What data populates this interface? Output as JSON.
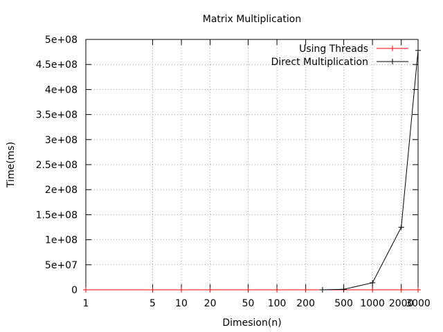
{
  "chart_data": {
    "type": "line",
    "title": "Matrix Multiplication",
    "xlabel": "Dimesion(n)",
    "ylabel": "Time(ms)",
    "xscale": "log",
    "xlim": [
      1,
      3000
    ],
    "ylim": [
      0,
      500000000
    ],
    "grid": true,
    "legend_position": "top-right",
    "xticks": [
      {
        "value": 1,
        "label": "1"
      },
      {
        "value": 5,
        "label": "5"
      },
      {
        "value": 10,
        "label": "10"
      },
      {
        "value": 20,
        "label": "20"
      },
      {
        "value": 50,
        "label": "50"
      },
      {
        "value": 100,
        "label": "100"
      },
      {
        "value": 200,
        "label": "200"
      },
      {
        "value": 500,
        "label": "500"
      },
      {
        "value": 1000,
        "label": "1000"
      },
      {
        "value": 2000,
        "label": "2000"
      },
      {
        "value": 3000,
        "label": "3000"
      }
    ],
    "yticks": [
      {
        "value": 0,
        "label": "0"
      },
      {
        "value": 50000000,
        "label": "5e+07"
      },
      {
        "value": 100000000,
        "label": "1e+08"
      },
      {
        "value": 150000000,
        "label": "1.5e+08"
      },
      {
        "value": 200000000,
        "label": "2e+08"
      },
      {
        "value": 250000000,
        "label": "2.5e+08"
      },
      {
        "value": 300000000,
        "label": "3e+08"
      },
      {
        "value": 350000000,
        "label": "3.5e+08"
      },
      {
        "value": 400000000,
        "label": "4e+08"
      },
      {
        "value": 450000000,
        "label": "4.5e+08"
      },
      {
        "value": 500000000,
        "label": "5e+08"
      }
    ],
    "series": [
      {
        "name": "Using Threads",
        "color": "#ff0000",
        "x": [
          1,
          5,
          10,
          20,
          50,
          100,
          200,
          500,
          1000,
          2000,
          3000
        ],
        "y": [
          0,
          0,
          0,
          0,
          0,
          0,
          0,
          0,
          0,
          0,
          0
        ]
      },
      {
        "name": "Direct Multiplication",
        "color": "#000000",
        "x": [
          300,
          500,
          1000,
          2000,
          3000
        ],
        "y": [
          0,
          1000000,
          14000000,
          125000000,
          478000000
        ]
      }
    ]
  }
}
